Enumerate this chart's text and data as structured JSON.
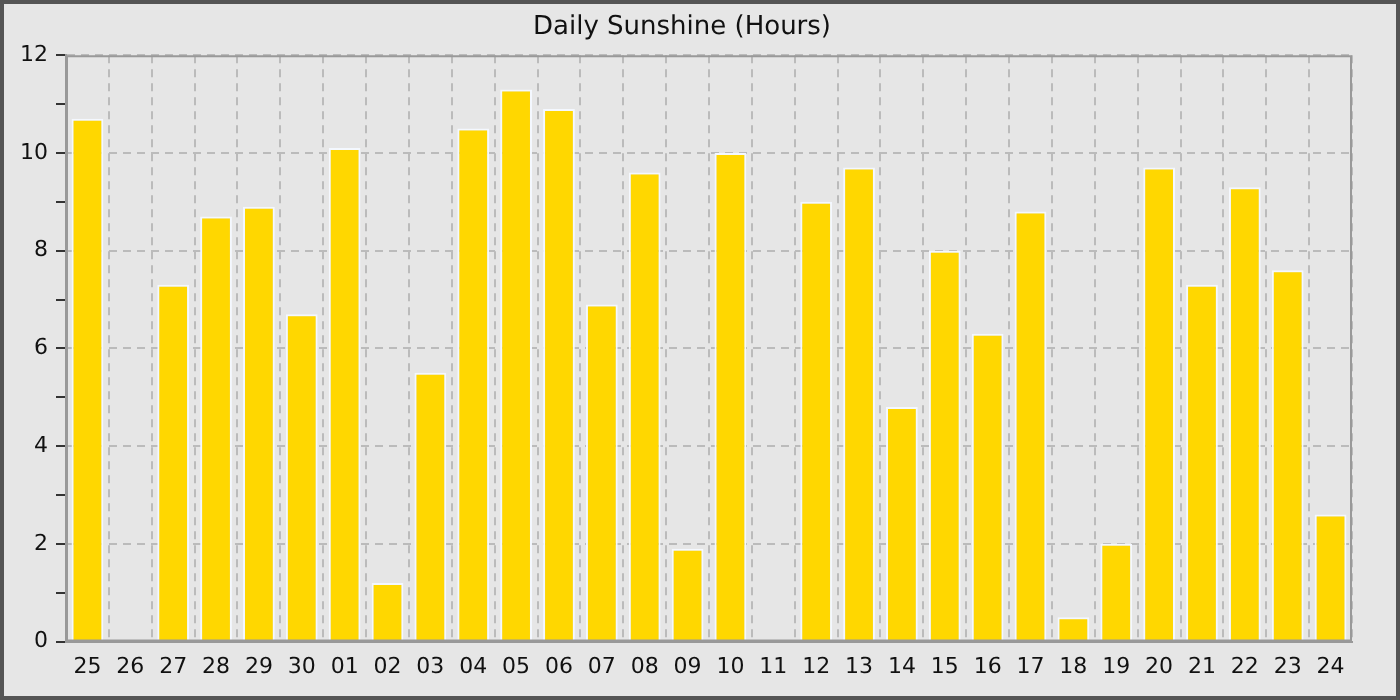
{
  "chart_data": {
    "type": "bar",
    "title": "Daily Sunshine (Hours)",
    "categories": [
      "25",
      "26",
      "27",
      "28",
      "29",
      "30",
      "01",
      "02",
      "03",
      "04",
      "05",
      "06",
      "07",
      "08",
      "09",
      "10",
      "11",
      "12",
      "13",
      "14",
      "15",
      "16",
      "17",
      "18",
      "19",
      "20",
      "21",
      "22",
      "23",
      "24"
    ],
    "values": [
      10.7,
      0,
      7.3,
      8.7,
      8.9,
      6.7,
      10.1,
      1.2,
      5.5,
      10.5,
      11.3,
      10.9,
      6.9,
      9.6,
      1.9,
      10.0,
      0,
      9.0,
      9.7,
      4.8,
      8.0,
      6.3,
      8.8,
      0.5,
      2.0,
      9.7,
      7.3,
      9.3,
      7.6,
      2.6
    ],
    "color": "#ffd700",
    "ylim": [
      0,
      12
    ],
    "yticks": [
      0,
      {
        "value": 1,
        "label": null
      },
      2,
      {
        "value": 3,
        "label": null
      },
      4,
      {
        "value": 5,
        "label": null
      },
      6,
      {
        "value": 7,
        "label": null
      },
      8,
      {
        "value": 9,
        "label": null
      },
      10,
      {
        "value": 11,
        "label": null
      },
      12
    ],
    "grid": true
  }
}
